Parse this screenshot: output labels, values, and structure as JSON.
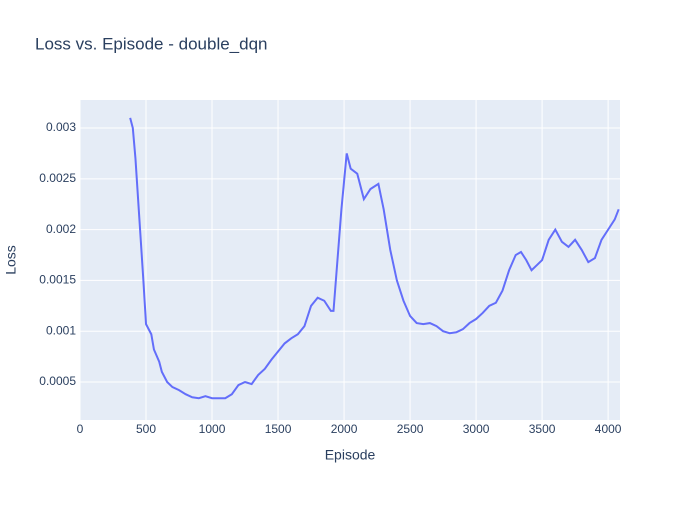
{
  "chart_data": {
    "type": "line",
    "title": "Loss vs. Episode - double_dqn",
    "x_label": "Episode",
    "y_label": "Loss",
    "grid": true,
    "plot_background": "#e5ecf6",
    "xlim": [
      0,
      4090
    ],
    "xticks": [
      0,
      500,
      1000,
      1500,
      2000,
      2500,
      3000,
      3500,
      4000
    ],
    "ylim": [
      0.000126,
      0.003276
    ],
    "yticks": [
      0.0005,
      0.001,
      0.0015,
      0.002,
      0.0025,
      0.003
    ],
    "series": [
      {
        "name": "double_dqn",
        "color": "#636efa",
        "x": [
          380,
          400,
          420,
          450,
          480,
          500,
          540,
          560,
          600,
          620,
          660,
          700,
          750,
          800,
          850,
          900,
          950,
          1000,
          1050,
          1100,
          1150,
          1200,
          1250,
          1300,
          1350,
          1400,
          1450,
          1500,
          1550,
          1600,
          1650,
          1700,
          1750,
          1800,
          1850,
          1900,
          1920,
          1950,
          1980,
          2020,
          2050,
          2100,
          2150,
          2200,
          2260,
          2300,
          2350,
          2400,
          2450,
          2500,
          2550,
          2600,
          2650,
          2700,
          2750,
          2800,
          2850,
          2900,
          2950,
          3000,
          3050,
          3100,
          3150,
          3200,
          3250,
          3300,
          3340,
          3380,
          3420,
          3460,
          3500,
          3550,
          3600,
          3650,
          3700,
          3750,
          3800,
          3850,
          3900,
          3950,
          4000,
          4050,
          4080
        ],
        "values": [
          0.0031,
          0.003,
          0.0027,
          0.0021,
          0.0015,
          0.00107,
          0.00097,
          0.00082,
          0.0007,
          0.0006,
          0.0005,
          0.00045,
          0.00042,
          0.00038,
          0.00035,
          0.00034,
          0.00036,
          0.00034,
          0.00034,
          0.00034,
          0.00038,
          0.00047,
          0.0005,
          0.00048,
          0.00057,
          0.00063,
          0.00072,
          0.0008,
          0.00088,
          0.00093,
          0.00097,
          0.00105,
          0.00125,
          0.00133,
          0.0013,
          0.0012,
          0.0012,
          0.0017,
          0.0022,
          0.00275,
          0.0026,
          0.00255,
          0.0023,
          0.0024,
          0.00245,
          0.0022,
          0.0018,
          0.0015,
          0.0013,
          0.00115,
          0.00108,
          0.00107,
          0.00108,
          0.00105,
          0.001,
          0.00098,
          0.00099,
          0.00102,
          0.00108,
          0.00112,
          0.00118,
          0.00125,
          0.00128,
          0.0014,
          0.0016,
          0.00175,
          0.00178,
          0.0017,
          0.0016,
          0.00165,
          0.0017,
          0.0019,
          0.002,
          0.00188,
          0.00183,
          0.0019,
          0.0018,
          0.00168,
          0.00172,
          0.0019,
          0.002,
          0.0021,
          0.0022
        ]
      }
    ]
  }
}
